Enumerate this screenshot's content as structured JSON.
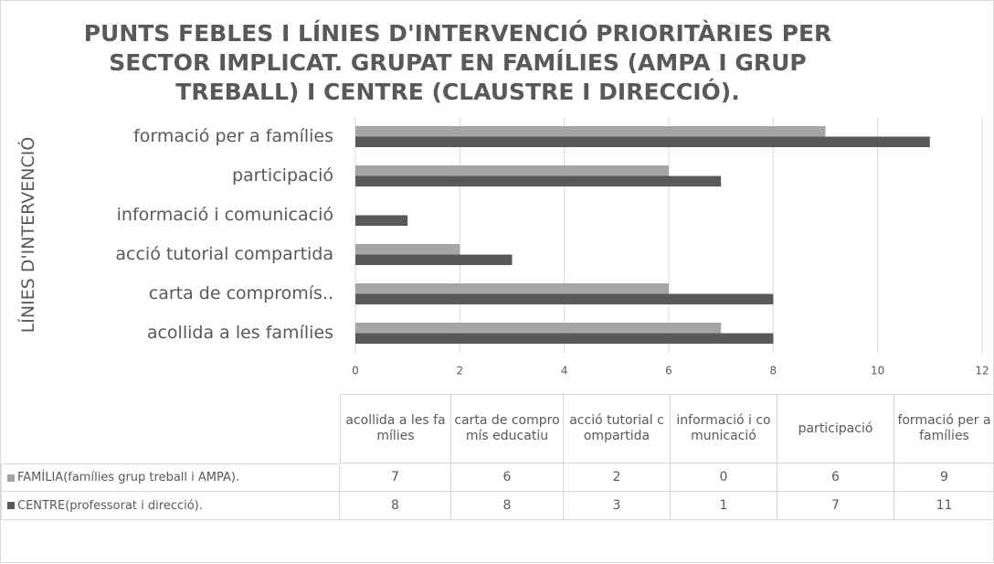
{
  "chart_data": {
    "type": "bar",
    "orientation": "horizontal",
    "title": "PUNTS FEBLES I LÍNIES D'INTERVENCIÓ PRIORITÀRIES PER SECTOR IMPLICAT. GRUPAT EN FAMÍLIES (AMPA I GRUP TREBALL) I CENTRE (CLAUSTRE I DIRECCIÓ).",
    "y_label": "LÍNIES D'INTERVENCIÓ",
    "categories": [
      "acollida a les famílies",
      "carta de compromís..",
      "acció tutorial compartida",
      "informació i comunicació",
      "participació",
      "formació per a famílies"
    ],
    "table_categories": [
      "acollida a les famílies",
      "carta de compromís educatiu",
      "acció tutorial compartida",
      "informació i comunicació",
      "participació",
      "formació per a famílies"
    ],
    "series": [
      {
        "name": "FAMÍLIA(famílies grup treball i AMPA).",
        "color": "#a5a5a5",
        "values": [
          7,
          6,
          2,
          0,
          6,
          9
        ]
      },
      {
        "name": "CENTRE(professorat i direcció).",
        "color": "#595959",
        "values": [
          8,
          8,
          3,
          1,
          7,
          11
        ]
      }
    ],
    "xlim": [
      0,
      12
    ],
    "xticks": [
      0,
      2,
      4,
      6,
      8,
      10,
      12
    ],
    "grid": true
  }
}
